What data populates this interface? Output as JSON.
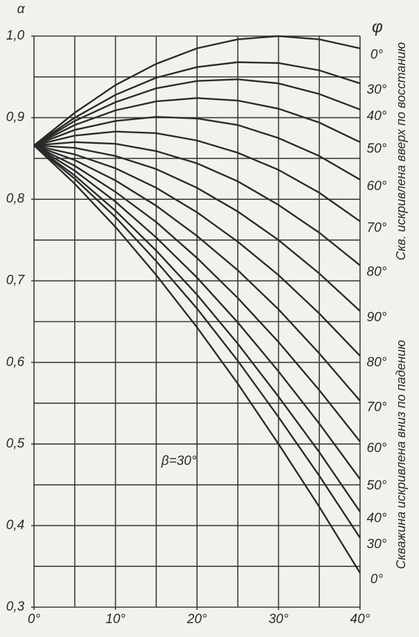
{
  "chart_data": {
    "type": "line",
    "y_label": "α",
    "series_label": "φ",
    "annotation": "β=30°",
    "side_label_lower": "Скважина искривлена вниз по падению",
    "side_label_upper": "Скв. искривлена вверх по восстанию",
    "x": [
      0,
      5,
      10,
      15,
      20,
      25,
      30,
      35,
      40
    ],
    "xlim": [
      0,
      40
    ],
    "xticks": [
      {
        "value": 0,
        "label": "0°"
      },
      {
        "value": 10,
        "label": "10°"
      },
      {
        "value": 20,
        "label": "20°"
      },
      {
        "value": 30,
        "label": "30°"
      },
      {
        "value": 40,
        "label": "40°"
      }
    ],
    "ylim": [
      0.3,
      1.0
    ],
    "yticks": [
      {
        "value": 0.3,
        "label": "0,3"
      },
      {
        "value": 0.4,
        "label": "0,4"
      },
      {
        "value": 0.5,
        "label": "0,5"
      },
      {
        "value": 0.6,
        "label": "0,6"
      },
      {
        "value": 0.7,
        "label": "0,7"
      },
      {
        "value": 0.8,
        "label": "0,8"
      },
      {
        "value": 0.9,
        "label": "0,9"
      },
      {
        "value": 1.0,
        "label": "1,0"
      }
    ],
    "xgrid": [
      0,
      5,
      10,
      15,
      20,
      25,
      30,
      35,
      40
    ],
    "ygrid": [
      0.3,
      0.35,
      0.4,
      0.45,
      0.5,
      0.55,
      0.6,
      0.65,
      0.7,
      0.75,
      0.8,
      0.85,
      0.9,
      0.95,
      1.0
    ],
    "grid": true,
    "series": [
      {
        "name": "0°",
        "color": "#2a2a2a",
        "values": [
          0.866,
          0.906,
          0.94,
          0.966,
          0.985,
          0.996,
          1.0,
          0.996,
          0.985
        ]
      },
      {
        "name": "30°",
        "color": "#2a2a2a",
        "values": [
          0.866,
          0.9,
          0.928,
          0.949,
          0.962,
          0.968,
          0.967,
          0.958,
          0.942
        ]
      },
      {
        "name": "40°",
        "color": "#2a2a2a",
        "values": [
          0.866,
          0.896,
          0.919,
          0.936,
          0.945,
          0.947,
          0.942,
          0.929,
          0.91
        ]
      },
      {
        "name": "50°",
        "color": "#2a2a2a",
        "values": [
          0.866,
          0.891,
          0.909,
          0.92,
          0.924,
          0.921,
          0.911,
          0.894,
          0.87
        ]
      },
      {
        "name": "60°",
        "color": "#2a2a2a",
        "values": [
          0.866,
          0.885,
          0.896,
          0.901,
          0.899,
          0.891,
          0.875,
          0.853,
          0.824
        ]
      },
      {
        "name": "70°",
        "color": "#2a2a2a",
        "values": [
          0.866,
          0.878,
          0.883,
          0.881,
          0.872,
          0.857,
          0.836,
          0.808,
          0.773
        ]
      },
      {
        "name": "80°",
        "color": "#2a2a2a",
        "values": [
          0.866,
          0.87,
          0.868,
          0.859,
          0.844,
          0.822,
          0.793,
          0.759,
          0.719
        ]
      },
      {
        "name": "90°",
        "color": "#2a2a2a",
        "values": [
          0.866,
          0.863,
          0.853,
          0.837,
          0.814,
          0.785,
          0.75,
          0.709,
          0.663
        ]
      },
      {
        "name": "80°",
        "color": "#2a2a2a",
        "values": [
          0.866,
          0.855,
          0.838,
          0.814,
          0.784,
          0.748,
          0.707,
          0.66,
          0.608
        ]
      },
      {
        "name": "70°",
        "color": "#2a2a2a",
        "values": [
          0.866,
          0.848,
          0.823,
          0.792,
          0.755,
          0.713,
          0.665,
          0.611,
          0.553
        ]
      },
      {
        "name": "60°",
        "color": "#2a2a2a",
        "values": [
          0.866,
          0.841,
          0.809,
          0.772,
          0.728,
          0.679,
          0.625,
          0.566,
          0.503
        ]
      },
      {
        "name": "50°",
        "color": "#2a2a2a",
        "values": [
          0.866,
          0.835,
          0.797,
          0.753,
          0.704,
          0.649,
          0.589,
          0.525,
          0.457
        ]
      },
      {
        "name": "40°",
        "color": "#2a2a2a",
        "values": [
          0.866,
          0.829,
          0.786,
          0.737,
          0.683,
          0.623,
          0.558,
          0.49,
          0.417
        ]
      },
      {
        "name": "30°",
        "color": "#2a2a2a",
        "values": [
          0.866,
          0.825,
          0.778,
          0.724,
          0.666,
          0.602,
          0.533,
          0.461,
          0.385
        ]
      },
      {
        "name": "0°",
        "color": "#2a2a2a",
        "values": [
          0.866,
          0.819,
          0.766,
          0.707,
          0.643,
          0.574,
          0.5,
          0.423,
          0.342
        ]
      }
    ]
  }
}
